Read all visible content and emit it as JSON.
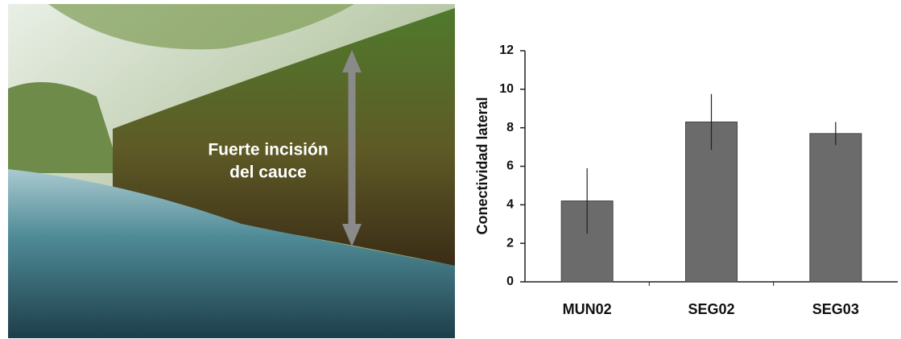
{
  "photo": {
    "annotation": [
      "Fuerte incisión",
      "del cauce"
    ]
  },
  "chart_data": {
    "type": "bar",
    "y_label": "Conectividad lateral",
    "categories": [
      "MUN02",
      "SEG02",
      "SEG03"
    ],
    "values": [
      4.2,
      8.3,
      7.7
    ],
    "errors": [
      1.7,
      1.45,
      0.6
    ],
    "color": "#6b6b6b",
    "ylim": [
      0,
      12
    ],
    "yticks": [
      0,
      2,
      4,
      6,
      8,
      10,
      12
    ],
    "grid": false
  }
}
